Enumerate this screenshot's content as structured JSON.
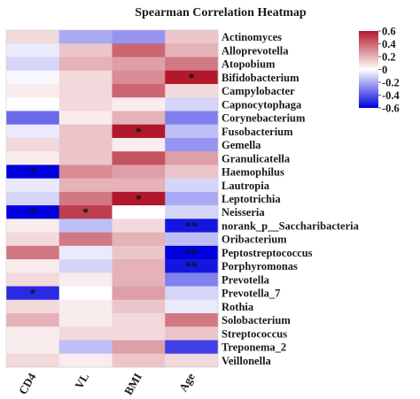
{
  "chart_data": {
    "type": "heatmap",
    "title": "Spearman Correlation Heatmap",
    "columns": [
      "CD4",
      "VL",
      "BMI",
      "Age"
    ],
    "rows": [
      "Actinomyces",
      "Alloprevotella",
      "Atopobium",
      "Bifidobacterium",
      "Campylobacter",
      "Capnocytophaga",
      "Corynebacterium",
      "Fusobacterium",
      "Gemella",
      "Granulicatella",
      "Haemophilus",
      "Lautropia",
      "Leptotrichia",
      "Neisseria",
      "norank_p__Saccharibacteria",
      "Oribacterium",
      "Peptostreptococcus",
      "Porphyromonas",
      "Prevotella",
      "Prevotella_7",
      "Rothia",
      "Solobacterium",
      "Streptococcus",
      "Treponema_2",
      "Veillonella"
    ],
    "values": [
      [
        0.1,
        -0.2,
        -0.25,
        0.15
      ],
      [
        -0.05,
        0.15,
        0.4,
        0.2
      ],
      [
        -0.1,
        0.2,
        0.25,
        0.35
      ],
      [
        -0.02,
        0.1,
        0.3,
        0.6
      ],
      [
        0.05,
        0.1,
        0.4,
        0.1
      ],
      [
        0.0,
        0.1,
        0.05,
        -0.1
      ],
      [
        -0.35,
        0.05,
        0.2,
        -0.3
      ],
      [
        -0.05,
        0.15,
        0.6,
        -0.15
      ],
      [
        0.1,
        0.15,
        0.05,
        -0.25
      ],
      [
        0.05,
        0.15,
        0.45,
        0.25
      ],
      [
        -0.6,
        0.3,
        0.25,
        0.15
      ],
      [
        -0.05,
        0.2,
        0.2,
        -0.1
      ],
      [
        -0.1,
        0.35,
        0.6,
        -0.2
      ],
      [
        -0.6,
        0.5,
        0.0,
        -0.1
      ],
      [
        0.05,
        -0.15,
        0.1,
        -0.55
      ],
      [
        0.1,
        0.35,
        0.2,
        -0.15
      ],
      [
        0.35,
        -0.05,
        0.15,
        -0.6
      ],
      [
        0.05,
        -0.1,
        0.2,
        -0.55
      ],
      [
        0.1,
        0.05,
        0.2,
        -0.3
      ],
      [
        -0.5,
        0.0,
        0.25,
        -0.1
      ],
      [
        0.1,
        0.05,
        0.15,
        -0.05
      ],
      [
        0.2,
        0.05,
        0.1,
        0.35
      ],
      [
        0.05,
        0.1,
        0.1,
        0.15
      ],
      [
        0.05,
        -0.15,
        0.25,
        -0.45
      ],
      [
        0.1,
        0.05,
        0.15,
        0.1
      ]
    ],
    "significance": [
      [
        "",
        "",
        "",
        ""
      ],
      [
        "",
        "",
        "",
        ""
      ],
      [
        "",
        "",
        "",
        ""
      ],
      [
        "",
        "",
        "",
        "*"
      ],
      [
        "",
        "",
        "",
        ""
      ],
      [
        "",
        "",
        "",
        ""
      ],
      [
        "",
        "",
        "",
        ""
      ],
      [
        "",
        "",
        "*",
        ""
      ],
      [
        "",
        "",
        "",
        ""
      ],
      [
        "",
        "",
        "",
        ""
      ],
      [
        "*",
        "",
        "",
        ""
      ],
      [
        "",
        "",
        "",
        ""
      ],
      [
        "",
        "",
        "*",
        ""
      ],
      [
        "*",
        "*",
        "",
        ""
      ],
      [
        "",
        "",
        "",
        "**"
      ],
      [
        "",
        "",
        "",
        ""
      ],
      [
        "",
        "",
        "",
        "**"
      ],
      [
        "",
        "",
        "",
        "**"
      ],
      [
        "",
        "",
        "",
        ""
      ],
      [
        "*",
        "",
        "",
        ""
      ],
      [
        "",
        "",
        "",
        ""
      ],
      [
        "",
        "",
        "",
        ""
      ],
      [
        "",
        "",
        "",
        ""
      ],
      [
        "",
        "",
        "",
        ""
      ],
      [
        "",
        "",
        "",
        ""
      ]
    ],
    "colorscale": {
      "min": -0.6,
      "max": 0.6,
      "low_color": "#0000dd",
      "mid_color": "#ffffff",
      "high_color": "#b2182b"
    },
    "legend_ticks": [
      0.6,
      0.4,
      0.2,
      0,
      -0.2,
      -0.4,
      -0.6
    ],
    "legend_tick_labels": [
      "0.6",
      "0.4",
      "0.2",
      "0",
      "-0.2",
      "-0.4",
      "-0.6"
    ],
    "legend_position": "top-right"
  }
}
